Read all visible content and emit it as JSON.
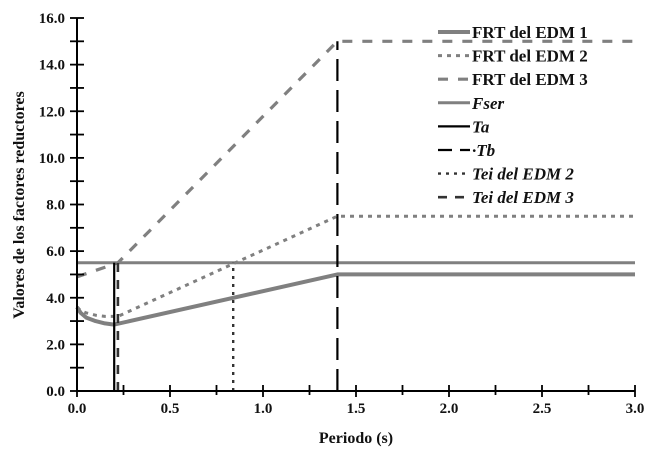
{
  "chart_data": {
    "type": "line",
    "title": "",
    "xlabel": "Periodo (s)",
    "ylabel": "Valores de los factores reductores",
    "xlim": [
      0.0,
      3.0
    ],
    "ylim": [
      0.0,
      16.0
    ],
    "x_ticks": [
      "0.0",
      "0.5",
      "1.0",
      "1.5",
      "2.0",
      "2.5",
      "3.0"
    ],
    "y_ticks": [
      "0.0",
      "2.0",
      "4.0",
      "6.0",
      "8.0",
      "10.0",
      "12.0",
      "14.0",
      "16.0"
    ],
    "grid": false,
    "legend_position": "upper right",
    "series": [
      {
        "name": "FRT del EDM 1",
        "style": "solid-thick",
        "color": "#808080",
        "italic": false,
        "x": [
          0.0,
          0.02,
          0.05,
          0.1,
          0.15,
          0.2,
          1.4,
          3.0
        ],
        "y": [
          3.6,
          3.35,
          3.15,
          3.0,
          2.9,
          2.85,
          5.0,
          5.0
        ]
      },
      {
        "name": "FRT del EDM 2",
        "style": "dotted",
        "color": "#808080",
        "italic": false,
        "x": [
          0.0,
          0.02,
          0.05,
          0.1,
          0.15,
          0.22,
          1.4,
          3.0
        ],
        "y": [
          3.6,
          3.45,
          3.35,
          3.25,
          3.2,
          3.2,
          7.5,
          7.5
        ]
      },
      {
        "name": "FRT del EDM 3",
        "style": "dashed",
        "color": "#808080",
        "italic": false,
        "x": [
          0.0,
          0.22,
          1.4,
          3.0
        ],
        "y": [
          4.9,
          5.5,
          15.0,
          15.0
        ]
      },
      {
        "name": "Fser",
        "style": "solid",
        "color": "#808080",
        "italic": true,
        "x": [
          0.0,
          3.0
        ],
        "y": [
          5.5,
          5.5
        ]
      },
      {
        "name": "Ta",
        "style": "solid",
        "color": "#000000",
        "italic": true,
        "x": [
          0.2,
          0.2
        ],
        "y": [
          0.0,
          5.5
        ]
      },
      {
        "name": "Tb",
        "style": "long-dash",
        "color": "#000000",
        "italic": true,
        "x": [
          1.4,
          1.4
        ],
        "y": [
          0.0,
          15.0
        ]
      },
      {
        "name": "Tei del EDM 2",
        "style": "dotted",
        "color": "#333333",
        "italic": true,
        "x": [
          0.84,
          0.84
        ],
        "y": [
          0.0,
          5.5
        ]
      },
      {
        "name": "Tei del EDM 3",
        "style": "dashed",
        "color": "#333333",
        "italic": true,
        "x": [
          0.22,
          0.22
        ],
        "y": [
          0.0,
          5.5
        ]
      }
    ]
  },
  "legend": {
    "items": [
      {
        "label": "FRT del EDM 1",
        "italic": false
      },
      {
        "label": "FRT del EDM 2",
        "italic": false
      },
      {
        "label": "FRT del EDM 3",
        "italic": false
      },
      {
        "label": "Fser",
        "italic": true
      },
      {
        "label": "Ta",
        "italic": true
      },
      {
        "label": "·Tb",
        "italic": true
      },
      {
        "label": "Tei del EDM 2",
        "italic": true
      },
      {
        "label": "Tei del EDM 3",
        "italic": true
      }
    ]
  },
  "axes": {
    "xlabel": "Periodo (s)",
    "ylabel": "Valores de los factores reductores"
  }
}
